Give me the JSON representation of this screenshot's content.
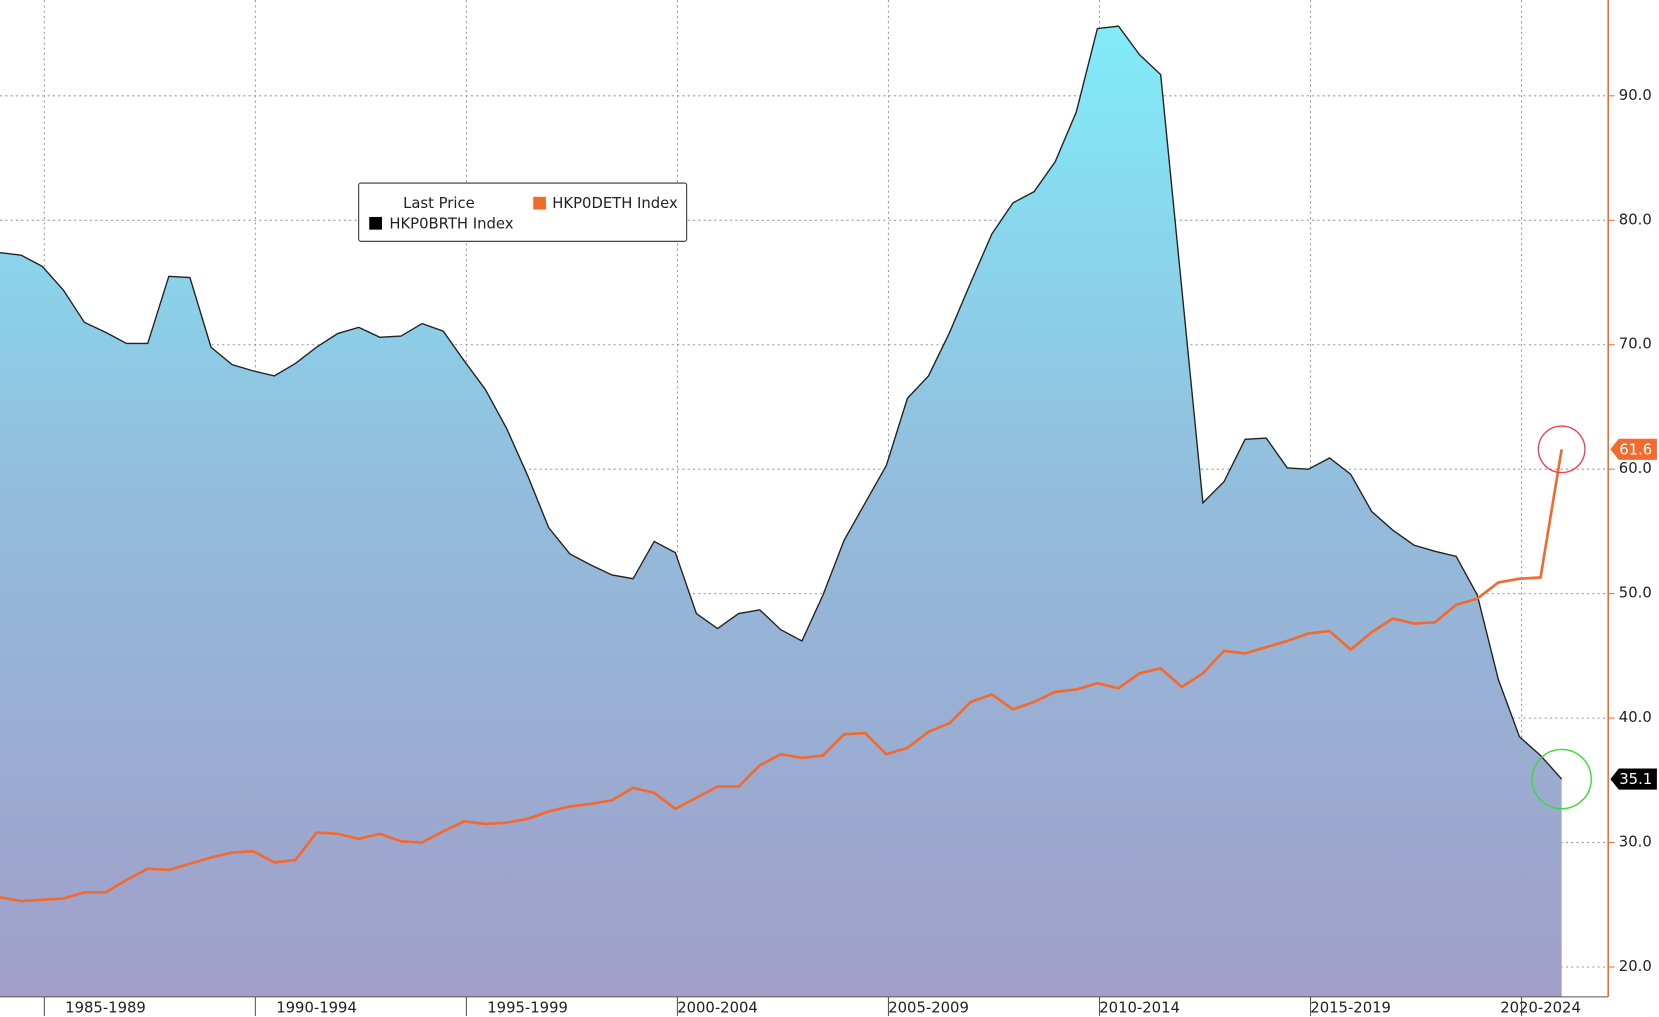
{
  "chart_data": {
    "type": "area-line",
    "legend_title": "Last Price",
    "categories": [
      null,
      null,
      null,
      null,
      null,
      "1985-1989",
      null,
      null,
      null,
      null,
      null,
      null,
      null,
      null,
      null,
      "1990-1994",
      null,
      null,
      null,
      null,
      null,
      null,
      null,
      null,
      null,
      "1995-1999",
      null,
      null,
      null,
      null,
      null,
      null,
      null,
      null,
      "2000-2004",
      null,
      null,
      null,
      null,
      null,
      null,
      null,
      null,
      null,
      "2005-2009",
      null,
      null,
      null,
      null,
      null,
      null,
      null,
      null,
      null,
      "2010-2014",
      null,
      null,
      null,
      null,
      null,
      null,
      null,
      null,
      null,
      "2015-2019",
      null,
      null,
      null,
      null,
      null,
      null,
      null,
      null,
      "2020-2024",
      null
    ],
    "series": [
      {
        "name": "HKP0BRTH Index",
        "color": "#000000",
        "values": [
          77.4,
          77.2,
          76.3,
          74.4,
          71.8,
          71.0,
          70.1,
          70.1,
          75.5,
          75.4,
          69.8,
          68.4,
          67.9,
          67.5,
          68.5,
          69.8,
          70.9,
          71.4,
          70.6,
          70.7,
          71.7,
          71.1,
          68.7,
          66.4,
          63.3,
          59.5,
          55.3,
          53.2,
          52.3,
          51.5,
          51.2,
          54.2,
          53.3,
          48.4,
          47.2,
          48.4,
          48.7,
          47.1,
          46.2,
          49.9,
          54.3,
          57.3,
          60.3,
          65.7,
          67.5,
          71.0,
          75.0,
          78.9,
          81.4,
          82.3,
          84.7,
          88.7,
          95.4,
          95.6,
          93.3,
          91.7,
          74.5,
          57.3,
          59.0,
          62.4,
          62.5,
          60.1,
          60.0,
          60.9,
          59.6,
          56.6,
          55.1,
          53.9,
          53.4,
          53.0,
          49.9,
          43.1,
          38.5,
          37.0,
          35.1
        ]
      },
      {
        "name": "HKP0DETH Index",
        "color": "#f26a2e",
        "values": [
          25.6,
          25.3,
          25.4,
          25.5,
          26.0,
          26.0,
          27.0,
          27.9,
          27.8,
          28.3,
          28.8,
          29.2,
          29.3,
          28.4,
          28.6,
          30.8,
          30.7,
          30.3,
          30.7,
          30.1,
          30.0,
          30.9,
          31.7,
          31.5,
          31.6,
          31.9,
          32.5,
          32.9,
          33.1,
          33.4,
          34.4,
          34.0,
          32.7,
          33.6,
          34.5,
          34.5,
          36.2,
          37.1,
          36.8,
          37.0,
          38.7,
          38.8,
          37.1,
          37.6,
          38.9,
          39.6,
          41.3,
          41.9,
          40.7,
          41.3,
          42.1,
          42.3,
          42.8,
          42.4,
          43.6,
          44.0,
          42.5,
          43.6,
          45.4,
          45.2,
          45.7,
          46.2,
          46.8,
          47.0,
          45.5,
          46.9,
          48.0,
          47.6,
          47.7,
          49.1,
          49.6,
          50.9,
          51.2,
          51.3,
          61.6
        ]
      }
    ],
    "ylim": [
      17.6,
      97.7
    ],
    "yticks": [
      {
        "value": 20,
        "label": "20.0"
      },
      {
        "value": 30,
        "label": "30.0"
      },
      {
        "value": 40,
        "label": "40.0"
      },
      {
        "value": 50,
        "label": "50.0"
      },
      {
        "value": 60,
        "label": "60.0"
      },
      {
        "value": 70,
        "label": "70.0"
      },
      {
        "value": 80,
        "label": "80.0"
      },
      {
        "value": 90,
        "label": "90.0"
      }
    ],
    "grid": true
  }
}
